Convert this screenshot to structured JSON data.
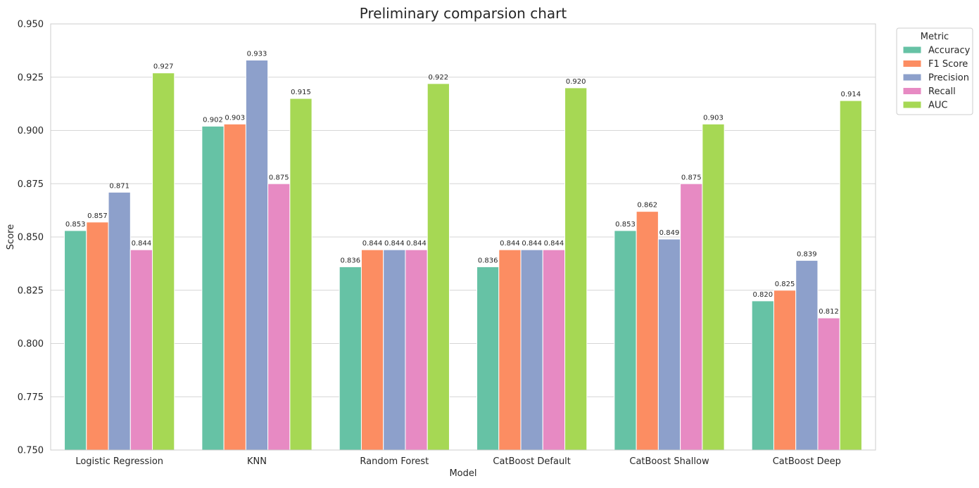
{
  "chart_data": {
    "type": "bar",
    "title": "Preliminary comparsion chart",
    "xlabel": "Model",
    "ylabel": "Score",
    "ylim": [
      0.75,
      0.95
    ],
    "yticks": [
      "0.750",
      "0.775",
      "0.800",
      "0.825",
      "0.850",
      "0.875",
      "0.900",
      "0.925",
      "0.950"
    ],
    "yticks_values": [
      0.75,
      0.775,
      0.8,
      0.825,
      0.85,
      0.875,
      0.9,
      0.925,
      0.95
    ],
    "grid": "horizontal",
    "legend": {
      "title": "Metric",
      "placement": "outside top-right"
    },
    "categories": [
      "Logistic Regression",
      "KNN",
      "Random Forest",
      "CatBoost Default",
      "CatBoost Shallow",
      "CatBoost Deep"
    ],
    "series": [
      {
        "name": "Accuracy",
        "color": "#66c2a5",
        "values": [
          0.853,
          0.902,
          0.836,
          0.836,
          0.853,
          0.82
        ],
        "labels": [
          "0.853",
          "0.902",
          "0.836",
          "0.836",
          "0.853",
          "0.820"
        ]
      },
      {
        "name": "F1 Score",
        "color": "#fc8d62",
        "values": [
          0.857,
          0.903,
          0.844,
          0.844,
          0.862,
          0.825
        ],
        "labels": [
          "0.857",
          "0.903",
          "0.844",
          "0.844",
          "0.862",
          "0.825"
        ]
      },
      {
        "name": "Precision",
        "color": "#8da0cb",
        "values": [
          0.871,
          0.933,
          0.844,
          0.844,
          0.849,
          0.839
        ],
        "labels": [
          "0.871",
          "0.933",
          "0.844",
          "0.844",
          "0.849",
          "0.839"
        ]
      },
      {
        "name": "Recall",
        "color": "#e78ac3",
        "values": [
          0.844,
          0.875,
          0.844,
          0.844,
          0.875,
          0.812
        ],
        "labels": [
          "0.844",
          "0.875",
          "0.844",
          "0.844",
          "0.875",
          "0.812"
        ]
      },
      {
        "name": "AUC",
        "color": "#a6d854",
        "values": [
          0.927,
          0.915,
          0.922,
          0.92,
          0.903,
          0.914
        ],
        "labels": [
          "0.927",
          "0.915",
          "0.922",
          "0.920",
          "0.903",
          "0.914"
        ]
      }
    ]
  }
}
